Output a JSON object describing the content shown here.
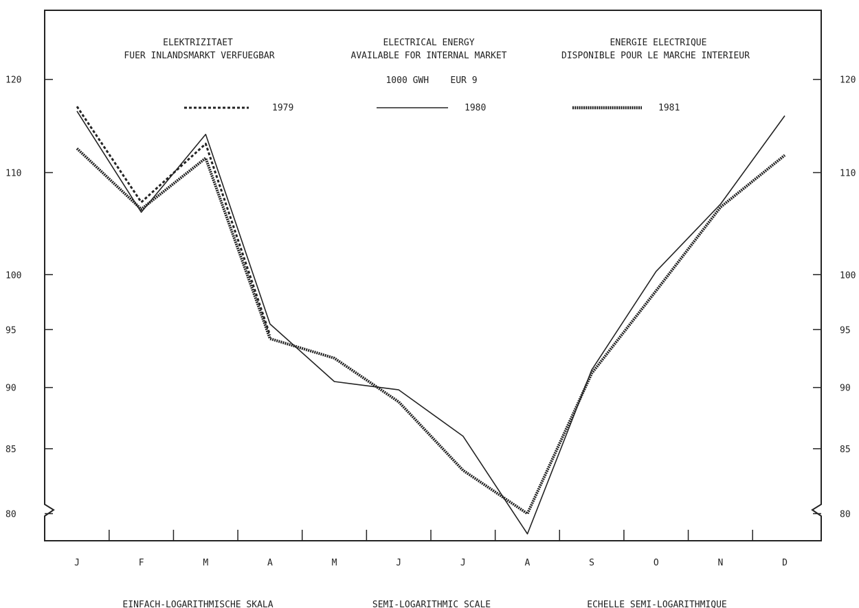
{
  "titles": {
    "de": [
      "ELEKTRIZITAET",
      "FUER INLANDSMARKT VERFUEGBAR"
    ],
    "en": [
      "ELECTRICAL ENERGY",
      "AVAILABLE FOR INTERNAL MARKET"
    ],
    "fr": [
      "ENERGIE ELECTRIQUE",
      "DISPONIBLE POUR LE MARCHE INTERIEUR"
    ],
    "unit": "1000 GWH    EUR 9"
  },
  "footer": {
    "de": "EINFACH-LOGARITHMISCHE SKALA",
    "en": "SEMI-LOGARITHMIC SCALE",
    "fr": "ECHELLE SEMI-LOGARITHMIQUE"
  },
  "chart_data": {
    "type": "line",
    "scale": "semi-logarithmic",
    "categories": [
      "J",
      "F",
      "M",
      "A",
      "M",
      "J",
      "J",
      "A",
      "S",
      "O",
      "N",
      "D"
    ],
    "yticks": [
      80,
      85,
      90,
      95,
      100,
      110,
      120
    ],
    "ylim": [
      78,
      128
    ],
    "axis_break": true,
    "grid": false,
    "series": [
      {
        "name": "1979",
        "style": "dotted",
        "values": [
          117,
          107,
          113,
          94.5,
          null,
          null,
          null,
          null,
          null,
          null,
          null,
          null
        ]
      },
      {
        "name": "1980",
        "style": "solid",
        "values": [
          116.5,
          106,
          114,
          95.5,
          90.5,
          89.8,
          86,
          78.5,
          91.5,
          100.3,
          106.8,
          116
        ]
      },
      {
        "name": "1981",
        "style": "dense",
        "values": [
          112.5,
          106.3,
          111.5,
          94.2,
          92.5,
          88.8,
          83.3,
          80,
          91.2,
          98.5,
          106.5,
          111.8
        ]
      }
    ]
  }
}
